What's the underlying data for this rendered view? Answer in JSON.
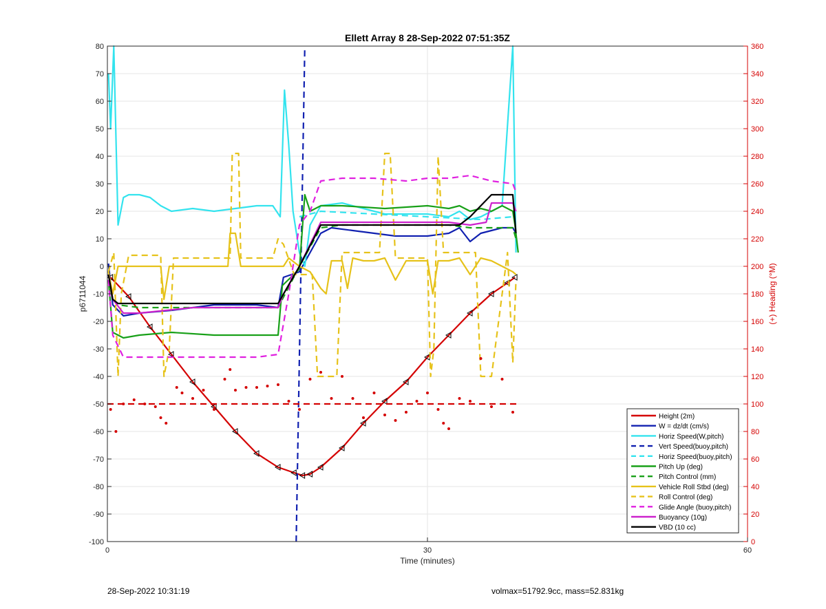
{
  "footer": {
    "timestamp": "28-Sep-2022 10:31:19",
    "summary": "volmax=51792.9cc, mass=52.831kg"
  },
  "chart_data": {
    "type": "line",
    "title": "Ellett Array 8 28-Sep-2022 07:51:35Z",
    "xlabel": "Time (minutes)",
    "ylabel_left": "p6711044",
    "ylabel_right": "(+) Heading (°M)",
    "xlim": [
      0,
      60
    ],
    "ylim_left": [
      -100,
      80
    ],
    "ylim_right": [
      0,
      360
    ],
    "xticks": [
      0,
      30,
      60
    ],
    "yticks_left": [
      -100,
      -90,
      -80,
      -70,
      -60,
      -50,
      -40,
      -30,
      -20,
      -10,
      0,
      10,
      20,
      30,
      40,
      50,
      60,
      70,
      80
    ],
    "yticks_right": [
      0,
      20,
      40,
      60,
      80,
      100,
      120,
      140,
      160,
      180,
      200,
      220,
      240,
      260,
      280,
      300,
      320,
      340,
      360
    ],
    "grid": true,
    "legend_position": "bottom-right",
    "colors": {
      "right_axis": "#d40000"
    },
    "series": [
      {
        "name": "Height (2m)",
        "color": "#d40000",
        "dash": false,
        "marker": "triangle",
        "x": [
          0.3,
          2,
          4,
          6,
          8,
          10,
          12,
          14,
          16,
          17.5,
          18.3,
          19,
          20,
          22,
          24,
          26,
          28,
          30,
          32,
          34,
          36,
          37.5,
          38.2
        ],
        "y": [
          -4,
          -11,
          -22,
          -32,
          -42,
          -51,
          -60,
          -68,
          -73,
          -75,
          -76,
          -75.5,
          -73,
          -66,
          -57,
          -49,
          -42,
          -33,
          -25,
          -17,
          -10,
          -6,
          -4
        ]
      },
      {
        "name": "W = dz/dt (cm/s)",
        "color": "#1020b0",
        "dash": false,
        "x": [
          0.1,
          0.5,
          1.5,
          3,
          6,
          10,
          14,
          16,
          16.5,
          18,
          19,
          20,
          21,
          23,
          25,
          27,
          30,
          32,
          33,
          34,
          35,
          36,
          37,
          38,
          38.3
        ],
        "y": [
          1,
          -14,
          -18,
          -17,
          -16,
          -14,
          -14,
          -15,
          -4,
          -2,
          5,
          12,
          14,
          13,
          12,
          11,
          11,
          12,
          14,
          9,
          12,
          13,
          14,
          14,
          12
        ]
      },
      {
        "name": "Horiz Speed(W,pitch)",
        "color": "#33e3ee",
        "dash": false,
        "x": [
          0.1,
          0.3,
          0.6,
          1,
          1.5,
          2,
          3,
          4,
          5,
          6,
          8,
          10,
          12,
          14,
          15.5,
          16.2,
          16.6,
          17,
          17.4,
          18,
          18.5,
          19,
          20,
          22,
          24,
          26,
          28,
          30,
          32,
          33,
          34,
          35,
          36,
          37,
          38,
          38.3
        ],
        "y": [
          70,
          50,
          80,
          15,
          25,
          26,
          26,
          25,
          22,
          20,
          21,
          20,
          21,
          22,
          22,
          18,
          64,
          44,
          20,
          5,
          0,
          15,
          22,
          23,
          21,
          19,
          19,
          19,
          18,
          20,
          17,
          18,
          20,
          22,
          80,
          5
        ]
      },
      {
        "name": "Vert Speed(buoy,pitch)",
        "color": "#1020b0",
        "dash": true,
        "x": [
          17.7,
          18.5
        ],
        "y": [
          -100,
          80
        ]
      },
      {
        "name": "Horiz Speed(buoy,pitch)",
        "color": "#33e3ee",
        "dash": true,
        "x": [
          18,
          20,
          25,
          30,
          35,
          38
        ],
        "y": [
          18,
          20,
          19,
          18,
          17,
          18
        ]
      },
      {
        "name": "Pitch Up (deg)",
        "color": "#18a018",
        "dash": false,
        "x": [
          0.1,
          0.5,
          1.5,
          3,
          6,
          10,
          14,
          16,
          16.4,
          18,
          18.5,
          19,
          20,
          22,
          26,
          30,
          32,
          33,
          34,
          35,
          36,
          37,
          38,
          38.2,
          38.5
        ],
        "y": [
          -5,
          -24,
          -26,
          -25,
          -24,
          -25,
          -25,
          -25,
          -7,
          -1,
          26,
          20,
          22,
          22,
          21,
          22,
          21,
          22,
          20,
          21,
          20,
          22,
          20,
          15,
          5
        ]
      },
      {
        "name": "Pitch Control (mm)",
        "color": "#18a018",
        "dash": true,
        "x": [
          0.1,
          0.5,
          1,
          3,
          8,
          12,
          16,
          18,
          20,
          22,
          28,
          32,
          34,
          36,
          38,
          38.3
        ],
        "y": [
          -5,
          -12,
          -14,
          -15,
          -15,
          -15,
          -15,
          0,
          14,
          15,
          15,
          15,
          14,
          14,
          14,
          10
        ]
      },
      {
        "name": "Vehicle Roll Stbd (deg)",
        "color": "#e6c21a",
        "dash": false,
        "x": [
          0.1,
          0.5,
          1,
          2,
          4,
          5,
          5.3,
          5.8,
          6.2,
          7,
          10,
          11.3,
          11.5,
          12,
          12.5,
          13,
          14,
          15,
          16,
          16.5,
          17,
          18,
          19,
          20,
          20.5,
          21,
          22,
          22.5,
          23,
          24,
          25,
          26,
          27,
          28,
          30,
          30.5,
          31,
          32,
          33,
          34,
          35,
          36,
          37,
          38,
          38.3
        ],
        "y": [
          -2,
          -10,
          0,
          0,
          0,
          0,
          -12,
          0,
          0,
          0,
          0,
          0,
          12,
          12,
          0,
          0,
          0,
          0,
          0,
          0,
          3,
          0,
          -2,
          -8,
          -10,
          2,
          2,
          -8,
          3,
          2,
          2,
          3,
          -5,
          2,
          2,
          -10,
          2,
          2,
          3,
          -3,
          3,
          2,
          0,
          -2,
          -3
        ]
      },
      {
        "name": "Roll Control (deg)",
        "color": "#e6c21a",
        "dash": true,
        "x": [
          0.1,
          0.6,
          1,
          1.3,
          2,
          5,
          5.3,
          5.8,
          6.2,
          11.5,
          11.7,
          12.3,
          12.5,
          15.5,
          16,
          16.5,
          17.5,
          19.2,
          19.7,
          21.5,
          22,
          22.3,
          23.5,
          25.5,
          26,
          26.5,
          27,
          28,
          30,
          30.3,
          30.6,
          31,
          31.5,
          32,
          32.5,
          34.5,
          35,
          36,
          37.5,
          38,
          38.3
        ],
        "y": [
          -2,
          5,
          -40,
          -10,
          4,
          4,
          -40,
          -30,
          3,
          3,
          41,
          41,
          3,
          3,
          10,
          8,
          -3,
          -3,
          -40,
          -40,
          5,
          5,
          5,
          5,
          41,
          41,
          3,
          3,
          3,
          -40,
          -30,
          40,
          5,
          5,
          5,
          5,
          -40,
          -40,
          5,
          -35,
          -5
        ]
      },
      {
        "name": "Glide Angle (buoy,pitch)",
        "color": "#e020e0",
        "dash": true,
        "x": [
          0.1,
          0.5,
          1.5,
          3,
          6,
          10,
          14,
          16,
          17,
          18,
          19,
          20,
          22,
          25,
          28,
          30,
          32,
          34,
          36,
          38,
          38.3
        ],
        "y": [
          -5,
          -25,
          -33,
          -33,
          -33,
          -33,
          -33,
          -32,
          -10,
          15,
          20,
          31,
          32,
          32,
          31,
          32,
          32,
          33,
          31,
          30,
          27
        ]
      },
      {
        "name": "Buoyancy (10g)",
        "color": "#cc22cc",
        "dash": false,
        "x": [
          0.1,
          0.5,
          1.5,
          3,
          8,
          12,
          16,
          16.5,
          18,
          20,
          22,
          26,
          30,
          32,
          34,
          35.5,
          36,
          38,
          38.3
        ],
        "y": [
          -3,
          -12,
          -17,
          -17,
          -15,
          -15,
          -15,
          -10,
          0,
          16,
          16,
          16,
          16,
          16,
          15,
          16,
          23,
          23,
          20
        ]
      },
      {
        "name": "VBD (10 cc)",
        "color": "#000000",
        "dash": false,
        "x": [
          0.1,
          0.5,
          1,
          3,
          8,
          12,
          16,
          18,
          20,
          22,
          26,
          30,
          33,
          34,
          35,
          36,
          37,
          38,
          38.3
        ],
        "y": [
          -3,
          -12,
          -13.5,
          -13.5,
          -13.5,
          -13.5,
          -13.5,
          0,
          15,
          15,
          15,
          15,
          15,
          18,
          22,
          26,
          26,
          26,
          12
        ]
      },
      {
        "name": "",
        "color": "#d40000",
        "dash": true,
        "axis": "right",
        "x": [
          0,
          38.5
        ],
        "y": [
          100,
          100
        ]
      },
      {
        "name": "",
        "color": "#d40000",
        "dash": false,
        "marker": "dot",
        "axis": "right",
        "x": [
          0.3,
          0.8,
          1.5,
          2.5,
          3.5,
          4.5,
          5,
          5.5,
          6.5,
          7,
          8,
          9,
          10,
          11,
          11.5,
          12,
          13,
          14,
          15,
          16,
          17,
          18,
          19,
          20,
          21,
          22,
          23,
          24,
          25,
          26,
          27,
          28,
          29,
          30,
          31,
          31.5,
          32,
          33,
          34,
          35,
          36,
          37,
          38
        ],
        "y": [
          96,
          80,
          100,
          103,
          100,
          98,
          90,
          86,
          112,
          108,
          104,
          110,
          96,
          118,
          125,
          110,
          112,
          112,
          113,
          114,
          102,
          96,
          118,
          123,
          104,
          120,
          104,
          90,
          108,
          92,
          88,
          94,
          102,
          108,
          96,
          86,
          82,
          104,
          102,
          133,
          98,
          118,
          94
        ]
      }
    ]
  }
}
